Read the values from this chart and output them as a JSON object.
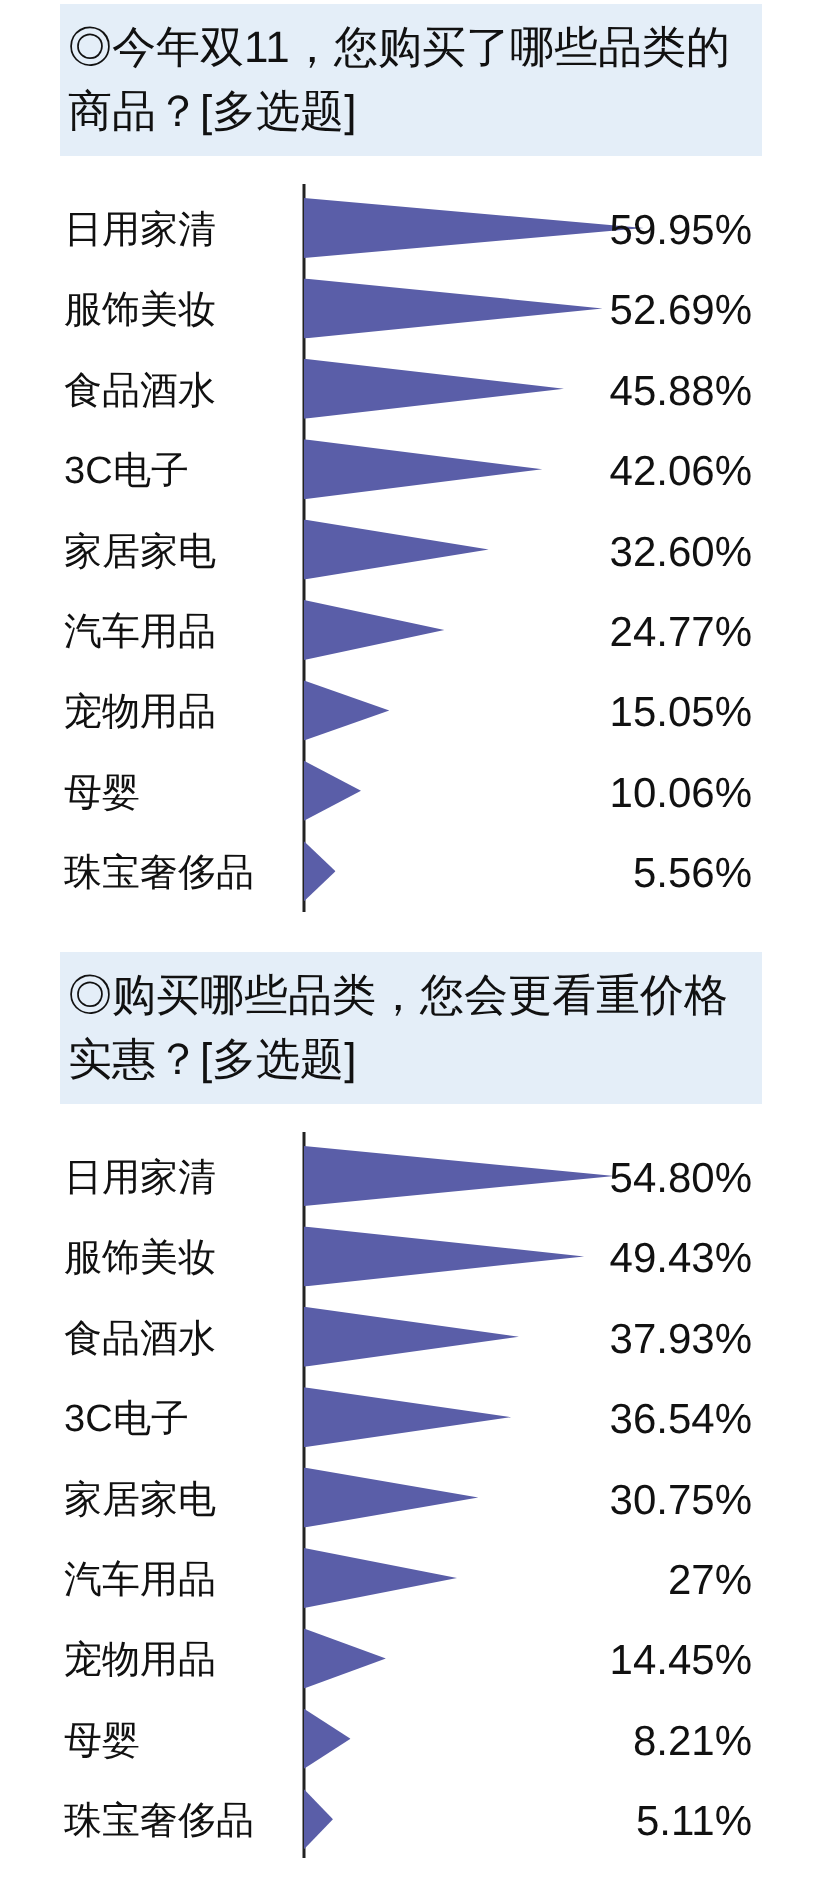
{
  "chart_data": [
    {
      "type": "bar",
      "orientation": "horizontal",
      "title": "◎今年双11，您购买了哪些品类的商品？[多选题]",
      "categories": [
        "日用家清",
        "服饰美妆",
        "食品酒水",
        "3C电子",
        "家居家电",
        "汽车用品",
        "宠物用品",
        "母婴",
        "珠宝奢侈品"
      ],
      "values": [
        59.95,
        52.69,
        45.88,
        42.06,
        32.6,
        24.77,
        15.05,
        10.06,
        5.56
      ],
      "value_labels": [
        "59.95%",
        "52.69%",
        "45.88%",
        "42.06%",
        "32.60%",
        "24.77%",
        "15.05%",
        "10.06%",
        "5.56%"
      ],
      "color": "#5a5ea8"
    },
    {
      "type": "bar",
      "orientation": "horizontal",
      "title": "◎购买哪些品类，您会更看重价格实惠？[多选题]",
      "categories": [
        "日用家清",
        "服饰美妆",
        "食品酒水",
        "3C电子",
        "家居家电",
        "汽车用品",
        "宠物用品",
        "母婴",
        "珠宝奢侈品"
      ],
      "values": [
        54.8,
        49.43,
        37.93,
        36.54,
        30.75,
        27,
        14.45,
        8.21,
        5.11
      ],
      "value_labels": [
        "54.80%",
        "49.43%",
        "37.93%",
        "36.54%",
        "30.75%",
        "27%",
        "14.45%",
        "8.21%",
        "5.11%"
      ],
      "color": "#5a5ea8"
    }
  ]
}
